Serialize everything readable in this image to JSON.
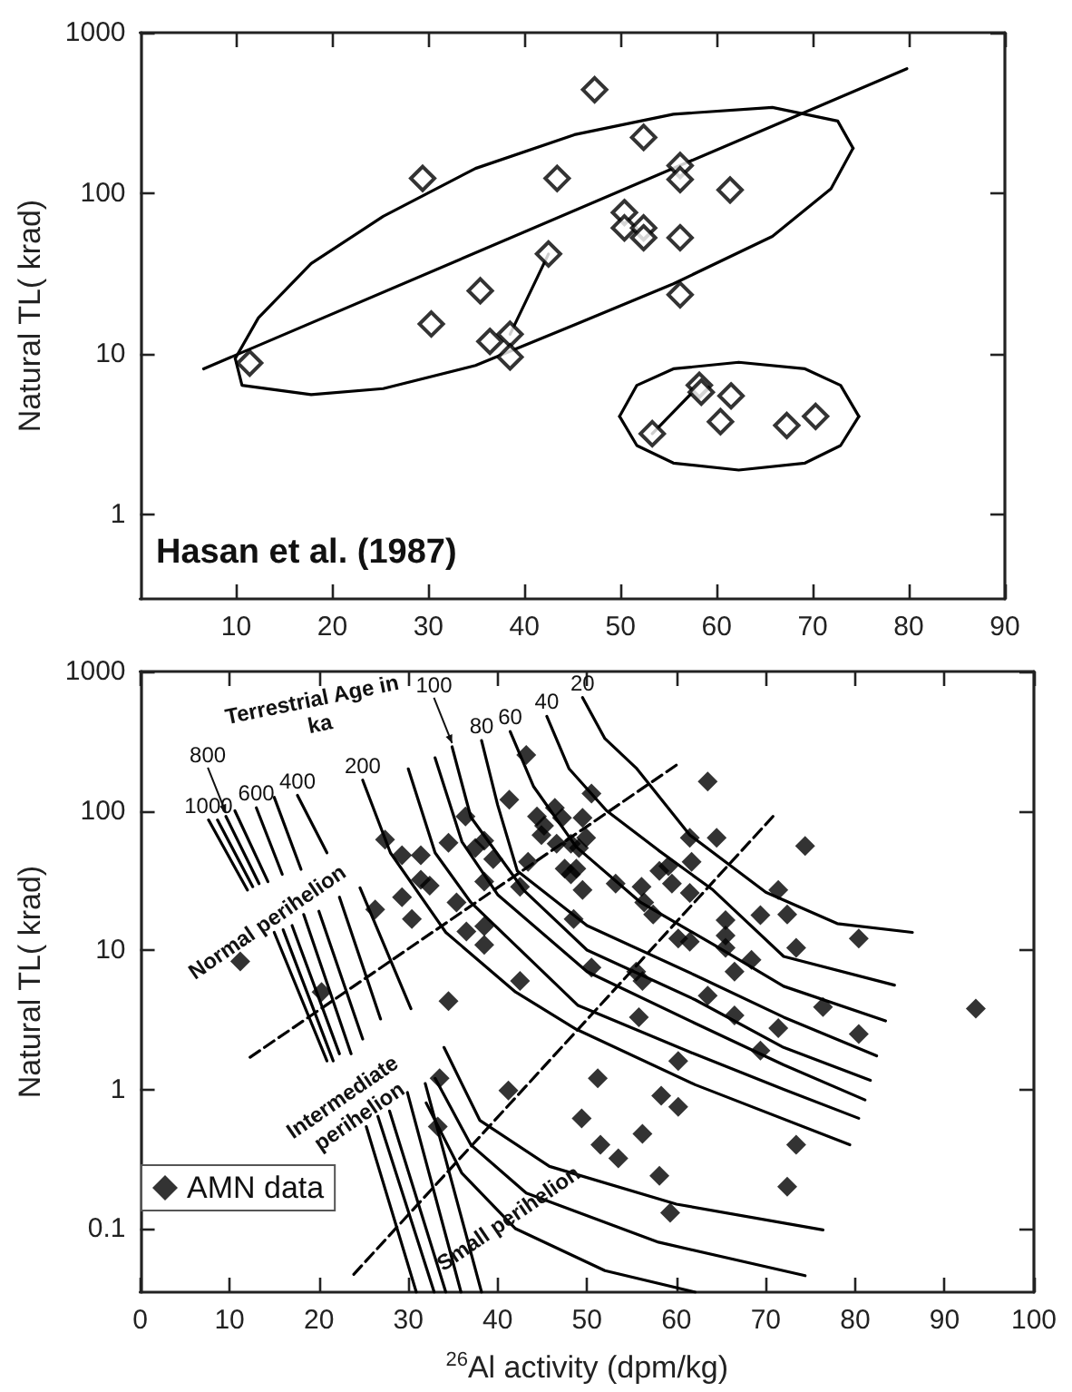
{
  "chart_data": [
    {
      "type": "scatter",
      "ylabel": "Natural TL( krad)",
      "xlim": [
        0,
        90
      ],
      "xticks": [
        10,
        20,
        30,
        40,
        50,
        60,
        70,
        80,
        90
      ],
      "ylim": [
        0.3,
        1000
      ],
      "yticks": [
        1,
        10,
        100,
        1000
      ],
      "log": "y",
      "annotations": [
        "Hasan et al. (1987)"
      ],
      "series": [
        {
          "marker": "diamond",
          "color": "#000000",
          "x": [
            11.4,
            29.4,
            30.3,
            35.4,
            36.4,
            38.5,
            38.5,
            42.5,
            43.4,
            47.3,
            50.4,
            50.4,
            52.4,
            52.4,
            52.4,
            56.2,
            56.2,
            56.2,
            56.2,
            61.4,
            53.3,
            58.2,
            58.4,
            61.5,
            60.4,
            67.3,
            70.3
          ],
          "values": [
            8.8,
            124,
            15.4,
            24.8,
            12,
            13.3,
            9.6,
            42,
            124,
            442,
            76,
            61,
            61,
            53,
            223,
            149,
            122,
            53,
            23.4,
            105,
            3.2,
            6.4,
            5.8,
            5.5,
            3.8,
            3.6,
            4.1
          ]
        },
        {
          "type": "line",
          "color": "#000000",
          "x": [
            38.5,
            42.5
          ],
          "values": [
            13.3,
            42
          ]
        },
        {
          "type": "line",
          "color": "#000000",
          "x": [
            53.3,
            58.2
          ],
          "values": [
            3.2,
            6.4
          ]
        },
        {
          "type": "line",
          "color": "#000000",
          "x": [
            6.6,
            79.8
          ],
          "values": [
            8.1,
            597
          ]
        },
        {
          "type": "line",
          "color": "#000000",
          "x": [
            9.9,
            12.3,
            17.8,
            25.3,
            34.9,
            45.2,
            55.5,
            65.8,
            72.6,
            74.2
          ],
          "values": [
            9.4,
            16.8,
            36.6,
            72,
            143,
            232,
            311,
            343,
            282,
            191
          ]
        },
        {
          "type": "line",
          "color": "#000000",
          "x": [
            9.9,
            10.6,
            17.8,
            25.3,
            34.9,
            45.2,
            55.5,
            65.8,
            71.9,
            74.2
          ],
          "values": [
            9.4,
            6.4,
            5.6,
            6.1,
            8.5,
            15.2,
            27.4,
            54,
            107,
            191
          ]
        },
        {
          "type": "line",
          "color": "#000000",
          "x": [
            49.9,
            51.7,
            55.5,
            62.3,
            69.2,
            72.9,
            74.8
          ],
          "values": [
            4.1,
            6.4,
            8.1,
            8.9,
            8.1,
            6.4,
            4.1
          ]
        },
        {
          "type": "line",
          "color": "#000000",
          "x": [
            49.9,
            51.7,
            55.5,
            62.3,
            69.2,
            72.9,
            74.8
          ],
          "values": [
            4.1,
            2.7,
            2.1,
            1.9,
            2.1,
            2.7,
            4.1
          ]
        }
      ]
    },
    {
      "type": "scatter",
      "xlabel": "$^{26}$Al activity (dpm/kg)",
      "ylabel": "Natural TL( krad)",
      "xlim": [
        0,
        100
      ],
      "xticks": [
        0,
        10,
        20,
        30,
        40,
        50,
        60,
        70,
        80,
        90,
        100
      ],
      "ylim": [
        0.035,
        1000
      ],
      "yticks": [
        0.1,
        1,
        10,
        100,
        1000
      ],
      "log": "y",
      "legend": "bottom left",
      "annotations": [
        "Terrestrial Age in ka",
        {
          "text": "20",
          "x": 49.5,
          "y": 650
        },
        {
          "text": "40",
          "x": 45.5,
          "y": 477
        },
        {
          "text": "60",
          "x": 41.4,
          "y": 371
        },
        {
          "text": "80",
          "x": 38.2,
          "y": 319
        },
        {
          "text": "100",
          "x": 34.9,
          "y": 288
        },
        {
          "text": "200",
          "x": 24.9,
          "y": 166
        },
        {
          "text": "400",
          "x": 17.6,
          "y": 129
        },
        {
          "text": "600",
          "x": 13.0,
          "y": 105
        },
        {
          "text": "1000",
          "x": 7.65,
          "y": 86
        },
        {
          "text": "800",
          "x": 9.6,
          "y": 91
        },
        {
          "text": "Normal perihelion",
          "x": 15,
          "y": 13.4
        },
        {
          "text": "Intermediate perihelion",
          "x": 25.3,
          "y": 0.54
        },
        {
          "text": "Small perihelion",
          "x": 42,
          "y": 0.1
        }
      ],
      "series": [
        {
          "name": "AMN data",
          "marker": "diamond",
          "color": "#000000",
          "x": [
            11.2,
            20.3,
            26.3,
            27.4,
            29.3,
            29.3,
            30.4,
            31.4,
            31.4,
            32.4,
            34.5,
            34.5,
            35.4,
            33.5,
            33.3,
            36.4,
            36.5,
            38.5,
            38.5,
            37.5,
            38.5,
            39.5,
            38.5,
            41.2,
            42.5,
            41.3,
            43.2,
            42.5,
            43.4,
            44.4,
            44.9,
            50.5,
            63.5,
            74.4,
            45.2,
            46.4,
            47.2,
            46.6,
            48.2,
            49.5,
            49.9,
            49.1,
            61.5,
            64.5,
            61.7,
            47.5,
            48.8,
            48.2,
            53.2,
            56.1,
            58.1,
            59.1,
            59.5,
            61.5,
            56.4,
            57.4,
            48.5,
            49.5,
            60.2,
            61.5,
            65.5,
            65.5,
            65.5,
            68.4,
            69.4,
            71.4,
            72.4,
            73.4,
            80.4,
            66.5,
            50.5,
            55.5,
            56.2,
            63.5,
            66.5,
            55.8,
            71.4,
            76.4,
            80.4,
            69.4,
            93.5,
            60.2,
            51.2,
            58.3,
            60.2,
            49.4,
            56.2,
            51.5,
            53.5,
            58.1,
            59.3,
            73.4,
            72.4
          ],
          "values": [
            8.3,
            5.0,
            19.6,
            62,
            48,
            24,
            16.7,
            48,
            32,
            29,
            59,
            4.3,
            22,
            1.2,
            0.54,
            91,
            13.6,
            14.8,
            10.9,
            54,
            61,
            45,
            31,
            0.98,
            6.0,
            120,
            252,
            28.5,
            43,
            91,
            67,
            133,
            162,
            56,
            78,
            105,
            89,
            58,
            58,
            89,
            64,
            54,
            64,
            64,
            43,
            38.5,
            38.5,
            35,
            30,
            28.5,
            37,
            40,
            30,
            25.7,
            22,
            18,
            16.7,
            27,
            12.1,
            11.5,
            16.4,
            12.7,
            10.4,
            8.5,
            17.8,
            27,
            18,
            10.4,
            12.1,
            7.0,
            7.5,
            7.0,
            6.0,
            4.7,
            3.4,
            3.3,
            2.75,
            3.9,
            2.5,
            1.9,
            3.8,
            1.6,
            1.2,
            0.9,
            0.75,
            0.62,
            0.48,
            0.4,
            0.32,
            0.24,
            0.13,
            0.4,
            0.2
          ]
        },
        {
          "type": "line",
          "color": "#000000",
          "x": [
            49.5,
            52,
            55.5,
            61.5,
            70,
            78,
            86.4
          ],
          "values": [
            650,
            330,
            203,
            67,
            26,
            15.5,
            13.4
          ]
        },
        {
          "type": "line",
          "color": "#000000",
          "x": [
            45.5,
            48,
            52.2,
            58,
            64.1,
            72,
            84.4
          ],
          "values": [
            477,
            200,
            100,
            52,
            27,
            9,
            5.6
          ]
        },
        {
          "type": "line",
          "color": "#000000",
          "x": [
            41.4,
            44,
            48.8,
            56,
            64.1,
            72,
            83.4
          ],
          "values": [
            371,
            150,
            55,
            22,
            11,
            5.5,
            3.1
          ]
        },
        {
          "type": "line",
          "color": "#000000",
          "x": [
            38.2,
            40,
            42.2,
            50,
            62.1,
            72,
            82.4
          ],
          "values": [
            319,
            110,
            37,
            15,
            6.6,
            3.3,
            1.74
          ]
        },
        {
          "type": "line",
          "color": "#000000",
          "x": [
            34.9,
            37,
            42.9,
            50,
            62.1,
            72,
            81.7
          ],
          "values": [
            288,
            90,
            27,
            10,
            4.4,
            2,
            1.16
          ]
        },
        {
          "type": "line",
          "color": "#000000",
          "x": [
            33,
            36,
            40,
            50,
            62,
            72,
            81.1
          ],
          "values": [
            240,
            60,
            25,
            7,
            3,
            1.5,
            0.84
          ]
        },
        {
          "type": "line",
          "color": "#000000",
          "x": [
            30,
            33,
            37,
            49,
            62,
            72,
            80.4
          ],
          "values": [
            200,
            50,
            22,
            4,
            1.8,
            1,
            0.62
          ]
        },
        {
          "type": "line",
          "color": "#000000",
          "x": [
            24.9,
            28,
            34.2,
            42,
            48.8,
            62.1,
            79.4
          ],
          "values": [
            166,
            50,
            13.4,
            5,
            2.7,
            1.08,
            0.4
          ]
        },
        {
          "type": "line",
          "color": "#000000",
          "x": [
            7.65,
            12.0
          ],
          "values": [
            86,
            27
          ]
        },
        {
          "type": "line",
          "color": "#000000",
          "x": [
            8.65,
            12.6
          ],
          "values": [
            86,
            28.5
          ]
        },
        {
          "type": "line",
          "color": "#000000",
          "x": [
            9.6,
            13.3
          ],
          "values": [
            91,
            30
          ]
        },
        {
          "type": "line",
          "color": "#000000",
          "x": [
            10.6,
            14.3
          ],
          "values": [
            100,
            31
          ]
        },
        {
          "type": "line",
          "color": "#000000",
          "x": [
            13.0,
            15.9
          ],
          "values": [
            105,
            35
          ]
        },
        {
          "type": "line",
          "color": "#000000",
          "x": [
            15,
            18
          ],
          "values": [
            125,
            38
          ]
        },
        {
          "type": "line",
          "color": "#000000",
          "x": [
            17.6,
            20.9
          ],
          "values": [
            129,
            50
          ]
        },
        {
          "type": "line",
          "color": "#000000",
          "x": [
            15,
            20.9
          ],
          "values": [
            13.4,
            1.6
          ]
        },
        {
          "type": "line",
          "color": "#000000",
          "x": [
            16,
            21.6
          ],
          "values": [
            14,
            1.6
          ]
        },
        {
          "type": "line",
          "color": "#000000",
          "x": [
            17,
            22.3
          ],
          "values": [
            15,
            1.8
          ]
        },
        {
          "type": "line",
          "color": "#000000",
          "x": [
            18.3,
            23.6
          ],
          "values": [
            18,
            1.8
          ]
        },
        {
          "type": "line",
          "color": "#000000",
          "x": [
            20,
            24.9
          ],
          "values": [
            19,
            2.3
          ]
        },
        {
          "type": "line",
          "color": "#000000",
          "x": [
            22.3,
            26.9
          ],
          "values": [
            24,
            3.2
          ]
        },
        {
          "type": "line",
          "color": "#000000",
          "x": [
            24.6,
            30.3
          ],
          "values": [
            28,
            3.8
          ]
        },
        {
          "type": "line",
          "color": "#000000",
          "x": [
            25.3,
            30.9
          ],
          "values": [
            0.54,
            0.035
          ]
        },
        {
          "type": "line",
          "color": "#000000",
          "x": [
            26.6,
            32.9
          ],
          "values": [
            0.64,
            0.035
          ]
        },
        {
          "type": "line",
          "color": "#000000",
          "x": [
            27.9,
            34.2
          ],
          "values": [
            0.7,
            0.035
          ]
        },
        {
          "type": "line",
          "color": "#000000",
          "x": [
            29.9,
            35.9
          ],
          "values": [
            0.95,
            0.035
          ]
        },
        {
          "type": "line",
          "color": "#000000",
          "x": [
            31.9,
            38.2
          ],
          "values": [
            1.1,
            0.035
          ]
        },
        {
          "type": "line",
          "color": "#000000",
          "x": [
            34,
            38,
            45.8,
            60,
            76.4
          ],
          "values": [
            2,
            0.6,
            0.28,
            0.15,
            0.098
          ]
        },
        {
          "type": "line",
          "color": "#000000",
          "x": [
            33,
            37,
            43.2,
            58,
            74.4
          ],
          "values": [
            1.2,
            0.4,
            0.18,
            0.08,
            0.046
          ]
        },
        {
          "type": "line",
          "color": "#000000",
          "x": [
            32,
            36,
            42,
            52,
            62.1
          ],
          "values": [
            0.8,
            0.25,
            0.1,
            0.05,
            0.035
          ]
        },
        {
          "type": "line",
          "color": "#000000",
          "line_style": "dashed",
          "x": [
            12.3,
            60.5
          ],
          "values": [
            1.7,
            224
          ]
        },
        {
          "type": "line",
          "color": "#000000",
          "line_style": "dashed",
          "x": [
            23.9,
            70.8
          ],
          "values": [
            0.047,
            91
          ]
        }
      ]
    }
  ]
}
